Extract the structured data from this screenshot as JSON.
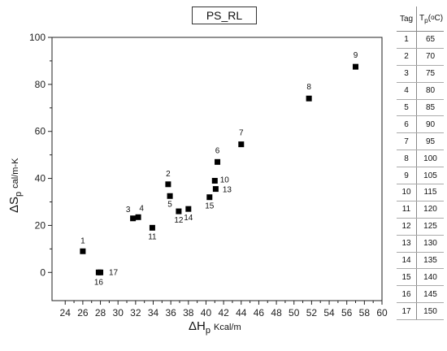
{
  "chart_data": {
    "type": "scatter",
    "title": "PS_RL",
    "xlabel": {
      "symbol": "ΔH",
      "sub": "p",
      "unit": "Kcal/m"
    },
    "ylabel": {
      "symbol": "ΔS",
      "sub": "p",
      "unit": "cal/m-K"
    },
    "xlim": [
      22.5,
      60
    ],
    "ylim": [
      -12,
      100
    ],
    "xticks": [
      24,
      26,
      28,
      30,
      32,
      34,
      36,
      38,
      40,
      42,
      44,
      46,
      48,
      50,
      52,
      54,
      56,
      58,
      60
    ],
    "yticks": [
      0,
      20,
      40,
      60,
      80,
      100
    ],
    "grid": false,
    "marker": "square",
    "marker_color": "#000000",
    "points": [
      {
        "label": "1",
        "x": 26.0,
        "y": 9.0
      },
      {
        "label": "2",
        "x": 35.7,
        "y": 37.5
      },
      {
        "label": "3",
        "x": 31.7,
        "y": 23.0
      },
      {
        "label": "4",
        "x": 32.3,
        "y": 23.5
      },
      {
        "label": "5",
        "x": 35.9,
        "y": 32.5
      },
      {
        "label": "6",
        "x": 41.3,
        "y": 47.0
      },
      {
        "label": "7",
        "x": 44.0,
        "y": 54.5
      },
      {
        "label": "8",
        "x": 51.7,
        "y": 74.0
      },
      {
        "label": "9",
        "x": 57.0,
        "y": 87.5
      },
      {
        "label": "10",
        "x": 41.0,
        "y": 39.0
      },
      {
        "label": "11",
        "x": 33.9,
        "y": 19.0
      },
      {
        "label": "12",
        "x": 36.9,
        "y": 26.0
      },
      {
        "label": "13",
        "x": 41.1,
        "y": 35.5
      },
      {
        "label": "14",
        "x": 38.0,
        "y": 27.0
      },
      {
        "label": "15",
        "x": 40.4,
        "y": 32.0
      },
      {
        "label": "16",
        "x": 27.8,
        "y": 0.0
      },
      {
        "label": "17",
        "x": 28.0,
        "y": 0.0
      }
    ]
  },
  "table": {
    "header_tag": "Tag",
    "header_tp": "T",
    "header_tp_sub": "p",
    "header_tp_unit": "(",
    "header_tp_deg": "o",
    "header_tp_unit_c": "C)",
    "rows": [
      {
        "tag": "1",
        "tp": "65"
      },
      {
        "tag": "2",
        "tp": "70"
      },
      {
        "tag": "3",
        "tp": "75"
      },
      {
        "tag": "4",
        "tp": "80"
      },
      {
        "tag": "5",
        "tp": "85"
      },
      {
        "tag": "6",
        "tp": "90"
      },
      {
        "tag": "7",
        "tp": "95"
      },
      {
        "tag": "8",
        "tp": "100"
      },
      {
        "tag": "9",
        "tp": "105"
      },
      {
        "tag": "10",
        "tp": "115"
      },
      {
        "tag": "11",
        "tp": "120"
      },
      {
        "tag": "12",
        "tp": "125"
      },
      {
        "tag": "13",
        "tp": "130"
      },
      {
        "tag": "14",
        "tp": "135"
      },
      {
        "tag": "15",
        "tp": "140"
      },
      {
        "tag": "16",
        "tp": "145"
      },
      {
        "tag": "17",
        "tp": "150"
      }
    ]
  }
}
